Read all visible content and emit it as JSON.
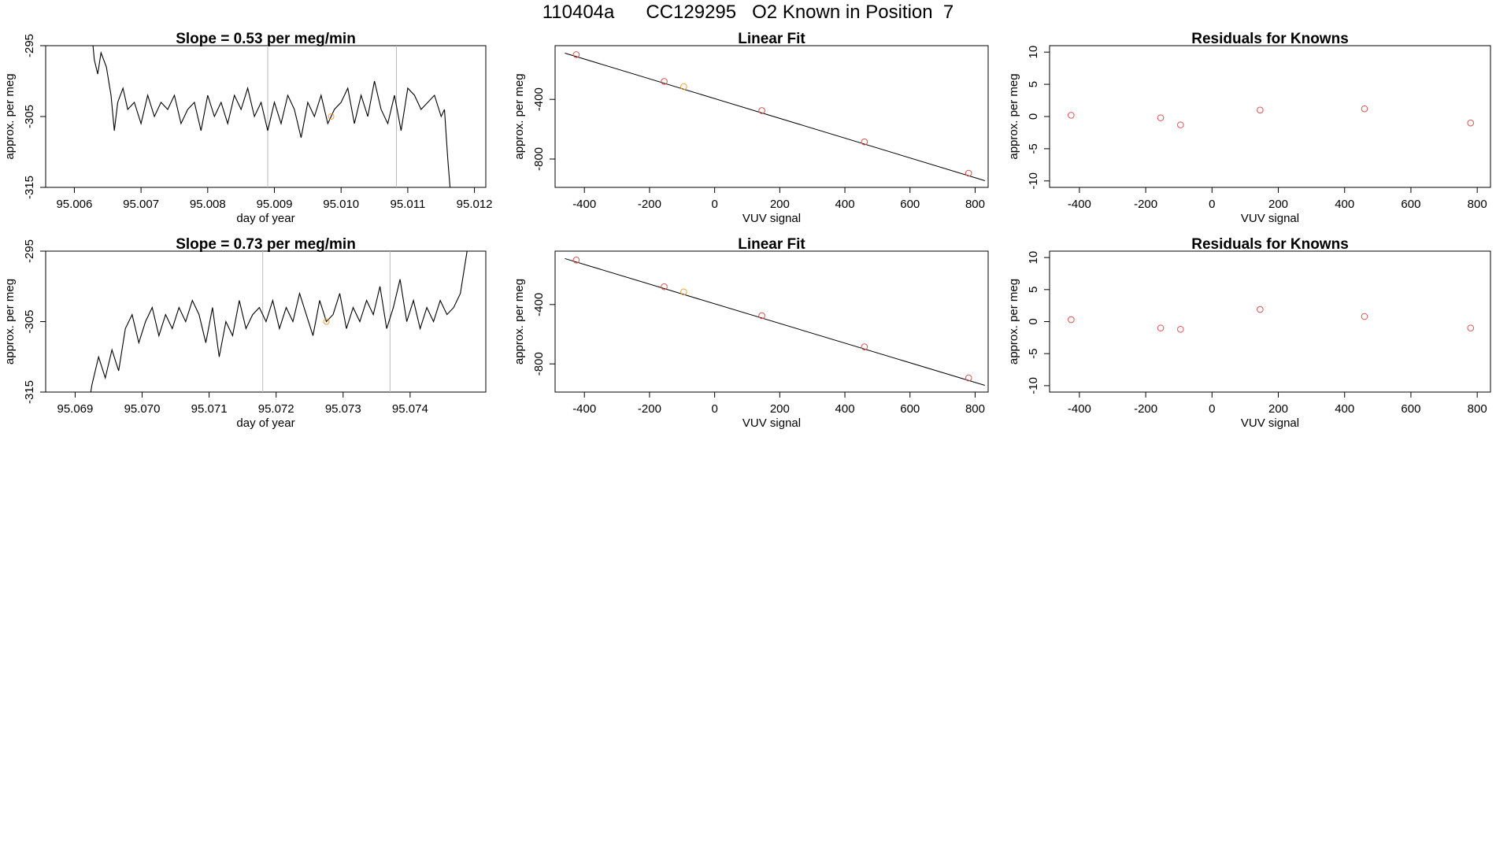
{
  "figure": {
    "title": "110404a      CC129295   O2 Known in Position  7"
  },
  "colors": {
    "line": "#000000",
    "marker": "#d9534f",
    "highlight": "#f0a030",
    "vline": "#bbbbbb",
    "frame": "#000000"
  },
  "chart_data": [
    {
      "id": "ts1",
      "type": "line",
      "title": "Slope =  0.53  per meg/min",
      "xlabel": "day of year",
      "ylabel": "approx. per meg",
      "xlim": [
        95.00557,
        95.01217
      ],
      "ylim": [
        -315,
        -295
      ],
      "xticks": [
        95.006,
        95.007,
        95.008,
        95.009,
        95.01,
        95.011,
        95.012
      ],
      "xtick_labels": [
        "95.006",
        "95.007",
        "95.008",
        "95.009",
        "95.010",
        "95.011",
        "95.012"
      ],
      "yticks": [
        -315,
        -305,
        -295
      ],
      "ytick_labels": [
        "-315",
        "-305",
        "-295"
      ],
      "vlines": [
        95.0089,
        95.01083
      ],
      "highlight_point": {
        "x": 95.00985,
        "y": -305
      },
      "series_x": [
        95.00625,
        95.0063,
        95.00635,
        95.0064,
        95.00648,
        95.00655,
        95.0066,
        95.00665,
        95.00673,
        95.0068,
        95.0069,
        95.007,
        95.0071,
        95.0072,
        95.0073,
        95.0074,
        95.0075,
        95.0076,
        95.0077,
        95.0078,
        95.0079,
        95.008,
        95.0081,
        95.0082,
        95.0083,
        95.0084,
        95.0085,
        95.0086,
        95.0087,
        95.0088,
        95.0089,
        95.009,
        95.0091,
        95.0092,
        95.0093,
        95.0094,
        95.0095,
        95.0096,
        95.0097,
        95.0098,
        95.0099,
        95.01,
        95.0101,
        95.0102,
        95.0103,
        95.0104,
        95.0105,
        95.0106,
        95.0107,
        95.0108,
        95.0109,
        95.011,
        95.0111,
        95.0112,
        95.0113,
        95.0114,
        95.0115,
        95.01155,
        95.0116,
        95.01165
      ],
      "series_y": [
        -292,
        -297,
        -299,
        -296,
        -298,
        -302,
        -307,
        -303,
        -301,
        -304,
        -303,
        -306,
        -302,
        -305,
        -303,
        -304,
        -302,
        -306,
        -304,
        -303,
        -307,
        -302,
        -305,
        -303,
        -306,
        -302,
        -304,
        -301,
        -305,
        -303,
        -307,
        -303,
        -306,
        -302,
        -304,
        -308,
        -303,
        -305,
        -302,
        -306,
        -304,
        -303,
        -301,
        -306,
        -302,
        -305,
        -300,
        -304,
        -306,
        -302,
        -307,
        -301,
        -302,
        -304,
        -303,
        -302,
        -305,
        -304,
        -311,
        -317
      ]
    },
    {
      "id": "fit1",
      "type": "scatter",
      "title": "Linear Fit",
      "xlabel": "VUV signal",
      "ylabel": "approx. per meg",
      "xlim": [
        -490,
        840
      ],
      "ylim": [
        -990,
        -40
      ],
      "xticks": [
        -400,
        -200,
        0,
        200,
        400,
        600,
        800
      ],
      "xtick_labels": [
        "-400",
        "-200",
        "0",
        "200",
        "400",
        "600",
        "800"
      ],
      "yticks": [
        -800,
        -400
      ],
      "ytick_labels": [
        "-800",
        "-400"
      ],
      "fit_line": {
        "x": [
          -460,
          830
        ],
        "y": [
          -90,
          -945
        ]
      },
      "points": {
        "x": [
          -425,
          -155,
          -95,
          145,
          460,
          780
        ],
        "y": [
          -100,
          -280,
          -315,
          -475,
          -685,
          -895
        ]
      },
      "highlight_index": 2
    },
    {
      "id": "res1",
      "type": "scatter",
      "title": "Residuals for Knowns",
      "xlabel": "VUV signal",
      "ylabel": "approx. per meg",
      "xlim": [
        -490,
        840
      ],
      "ylim": [
        -11,
        11
      ],
      "xticks": [
        -400,
        -200,
        0,
        200,
        400,
        600,
        800
      ],
      "xtick_labels": [
        "-400",
        "-200",
        "0",
        "200",
        "400",
        "600",
        "800"
      ],
      "yticks": [
        -10,
        -5,
        0,
        5,
        10
      ],
      "ytick_labels": [
        "-10",
        "-5",
        "0",
        "5",
        "10"
      ],
      "points": {
        "x": [
          -425,
          -155,
          -95,
          145,
          460,
          780
        ],
        "y": [
          0.2,
          -0.2,
          -1.3,
          1.0,
          1.2,
          -1.0
        ]
      }
    },
    {
      "id": "ts2",
      "type": "line",
      "title": "Slope =  0.73  per meg/min",
      "xlabel": "day of year",
      "ylabel": "approx. per meg",
      "xlim": [
        95.06856,
        95.07513
      ],
      "ylim": [
        -315,
        -295
      ],
      "xticks": [
        95.069,
        95.07,
        95.071,
        95.072,
        95.073,
        95.074
      ],
      "xtick_labels": [
        "95.069",
        "95.070",
        "95.071",
        "95.072",
        "95.073",
        "95.074"
      ],
      "yticks": [
        -315,
        -305,
        -295
      ],
      "ytick_labels": [
        "-315",
        "-305",
        "-295"
      ],
      "vlines": [
        95.0718,
        95.0737
      ],
      "highlight_point": {
        "x": 95.07275,
        "y": -305
      },
      "series_x": [
        95.0692,
        95.06925,
        95.06935,
        95.06945,
        95.06955,
        95.06965,
        95.06975,
        95.06985,
        95.06995,
        95.07005,
        95.07015,
        95.07025,
        95.07035,
        95.07045,
        95.07055,
        95.07065,
        95.07075,
        95.07085,
        95.07095,
        95.07105,
        95.07115,
        95.07125,
        95.07135,
        95.07145,
        95.07155,
        95.07165,
        95.07175,
        95.07185,
        95.07195,
        95.07205,
        95.07215,
        95.07225,
        95.07235,
        95.07245,
        95.07255,
        95.07265,
        95.07275,
        95.07285,
        95.07295,
        95.07305,
        95.07315,
        95.07325,
        95.07335,
        95.07345,
        95.07355,
        95.07365,
        95.07375,
        95.07385,
        95.07395,
        95.07405,
        95.07415,
        95.07425,
        95.07435,
        95.07445,
        95.07455,
        95.07465,
        95.07475,
        95.07485,
        95.0749
      ],
      "series_y": [
        -317,
        -314,
        -310,
        -313,
        -309,
        -312,
        -306,
        -304,
        -308,
        -305,
        -303,
        -307,
        -304,
        -306,
        -303,
        -305,
        -302,
        -304,
        -308,
        -303,
        -310,
        -305,
        -307,
        -302,
        -306,
        -304,
        -303,
        -305,
        -302,
        -306,
        -303,
        -305,
        -301,
        -304,
        -307,
        -302,
        -305,
        -304,
        -301,
        -306,
        -303,
        -305,
        -302,
        -304,
        -300,
        -306,
        -303,
        -299,
        -305,
        -302,
        -306,
        -303,
        -305,
        -302,
        -304,
        -303,
        -301,
        -295,
        -290
      ]
    },
    {
      "id": "fit2",
      "type": "scatter",
      "title": "Linear Fit",
      "xlabel": "VUV signal",
      "ylabel": "approx. per meg",
      "xlim": [
        -490,
        840
      ],
      "ylim": [
        -990,
        -40
      ],
      "xticks": [
        -400,
        -200,
        0,
        200,
        400,
        600,
        800
      ],
      "xtick_labels": [
        "-400",
        "-200",
        "0",
        "200",
        "400",
        "600",
        "800"
      ],
      "yticks": [
        -800,
        -400
      ],
      "ytick_labels": [
        "-800",
        "-400"
      ],
      "fit_line": {
        "x": [
          -460,
          830
        ],
        "y": [
          -90,
          -945
        ]
      },
      "points": {
        "x": [
          -425,
          -155,
          -95,
          145,
          460,
          780
        ],
        "y": [
          -100,
          -280,
          -315,
          -475,
          -685,
          -895
        ]
      },
      "highlight_index": 2
    },
    {
      "id": "res2",
      "type": "scatter",
      "title": "Residuals for Knowns",
      "xlabel": "VUV signal",
      "ylabel": "approx. per meg",
      "xlim": [
        -490,
        840
      ],
      "ylim": [
        -11,
        11
      ],
      "xticks": [
        -400,
        -200,
        0,
        200,
        400,
        600,
        800
      ],
      "xtick_labels": [
        "-400",
        "-200",
        "0",
        "200",
        "400",
        "600",
        "800"
      ],
      "yticks": [
        -10,
        -5,
        0,
        5,
        10
      ],
      "ytick_labels": [
        "-10",
        "-5",
        "0",
        "5",
        "10"
      ],
      "points": {
        "x": [
          -425,
          -155,
          -95,
          145,
          460,
          780
        ],
        "y": [
          0.3,
          -1.0,
          -1.2,
          1.9,
          0.8,
          -1.0
        ]
      }
    }
  ]
}
